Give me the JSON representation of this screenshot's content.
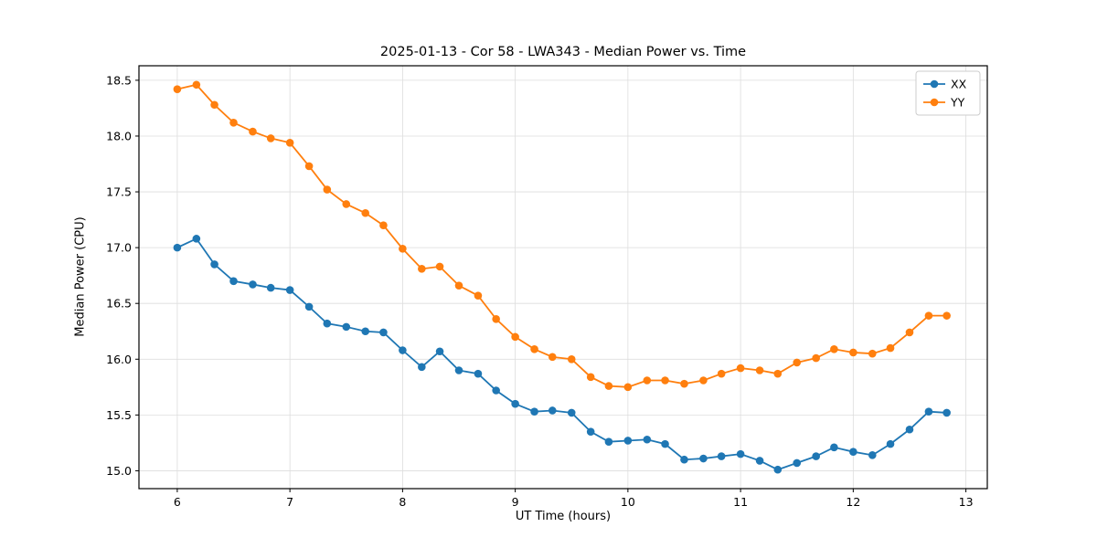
{
  "chart_data": {
    "type": "line",
    "title": "2025-01-13 - Cor 58 - LWA343 - Median Power vs. Time",
    "xlabel": "UT Time (hours)",
    "ylabel": "Median Power (CPU)",
    "xlim": [
      5.66,
      13.19
    ],
    "ylim": [
      14.84,
      18.63
    ],
    "xticks": [
      6,
      7,
      8,
      9,
      10,
      11,
      12,
      13
    ],
    "xtick_labels": [
      "6",
      "7",
      "8",
      "9",
      "10",
      "11",
      "12",
      "13"
    ],
    "yticks": [
      15.0,
      15.5,
      16.0,
      16.5,
      17.0,
      17.5,
      18.0,
      18.5
    ],
    "ytick_labels": [
      "15.0",
      "15.5",
      "16.0",
      "16.5",
      "17.0",
      "17.5",
      "18.0",
      "18.5"
    ],
    "grid": true,
    "legend_position": "upper right",
    "marker": "o",
    "x": [
      6.0,
      6.17,
      6.33,
      6.5,
      6.67,
      6.83,
      7.0,
      7.17,
      7.33,
      7.5,
      7.67,
      7.83,
      8.0,
      8.17,
      8.33,
      8.5,
      8.67,
      8.83,
      9.0,
      9.17,
      9.33,
      9.5,
      9.67,
      9.83,
      10.0,
      10.17,
      10.33,
      10.5,
      10.67,
      10.83,
      11.0,
      11.17,
      11.33,
      11.5,
      11.67,
      11.83,
      12.0,
      12.17,
      12.33,
      12.5,
      12.67,
      12.83
    ],
    "series": [
      {
        "name": "XX",
        "color": "#1f77b4",
        "values": [
          17.0,
          17.08,
          16.85,
          16.7,
          16.67,
          16.64,
          16.62,
          16.47,
          16.32,
          16.29,
          16.25,
          16.24,
          16.08,
          15.93,
          16.07,
          15.9,
          15.87,
          15.72,
          15.6,
          15.53,
          15.54,
          15.52,
          15.35,
          15.26,
          15.27,
          15.28,
          15.24,
          15.1,
          15.11,
          15.13,
          15.15,
          15.09,
          15.01,
          15.07,
          15.13,
          15.21,
          15.17,
          15.14,
          15.24,
          15.37,
          15.53,
          15.52
        ]
      },
      {
        "name": "YY",
        "color": "#ff7f0e",
        "values": [
          18.42,
          18.46,
          18.28,
          18.12,
          18.04,
          17.98,
          17.94,
          17.73,
          17.52,
          17.39,
          17.31,
          17.2,
          16.99,
          16.81,
          16.83,
          16.66,
          16.57,
          16.36,
          16.2,
          16.09,
          16.02,
          16.0,
          15.84,
          15.76,
          15.75,
          15.81,
          15.81,
          15.78,
          15.81,
          15.87,
          15.92,
          15.9,
          15.87,
          15.97,
          16.01,
          16.09,
          16.06,
          16.05,
          16.1,
          16.24,
          16.39,
          16.39
        ]
      }
    ]
  }
}
